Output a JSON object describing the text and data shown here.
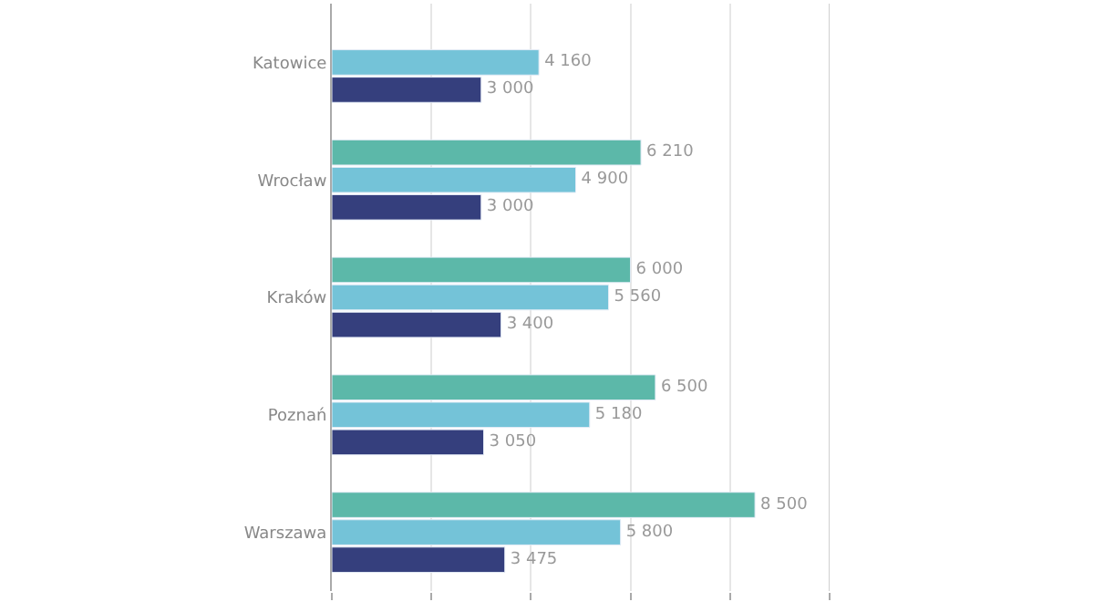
{
  "chart_data": {
    "type": "bar",
    "orientation": "horizontal",
    "categories": [
      "Katowice",
      "Wrocław",
      "Kraków",
      "Poznań",
      "Warszawa"
    ],
    "series": [
      {
        "color": "#5cb8a9",
        "values": [
          null,
          6210,
          6000,
          6500,
          8500
        ],
        "value_labels": [
          null,
          "6 210",
          "6 000",
          "6 500",
          "8 500"
        ]
      },
      {
        "color": "#74c3d8",
        "values": [
          4160,
          4900,
          5560,
          5180,
          5800
        ],
        "value_labels": [
          "4 160",
          "4 900",
          "5 560",
          "5 180",
          "5 800"
        ]
      },
      {
        "color": "#353f7d",
        "values": [
          3000,
          3000,
          3400,
          3050,
          3475
        ],
        "value_labels": [
          "3 000",
          "3 000",
          "3 400",
          "3 050",
          "3 475"
        ]
      }
    ],
    "xlim": [
      0,
      10000
    ],
    "xticks": [
      {
        "value": 0,
        "label": null
      },
      {
        "value": 2000,
        "label": null
      },
      {
        "value": 4000,
        "label": null
      },
      {
        "value": 6000,
        "label": null
      },
      {
        "value": 8000,
        "label": null
      },
      {
        "value": 10000,
        "label": null
      }
    ],
    "grid": "x",
    "legend": false,
    "tick_labels": "y"
  }
}
